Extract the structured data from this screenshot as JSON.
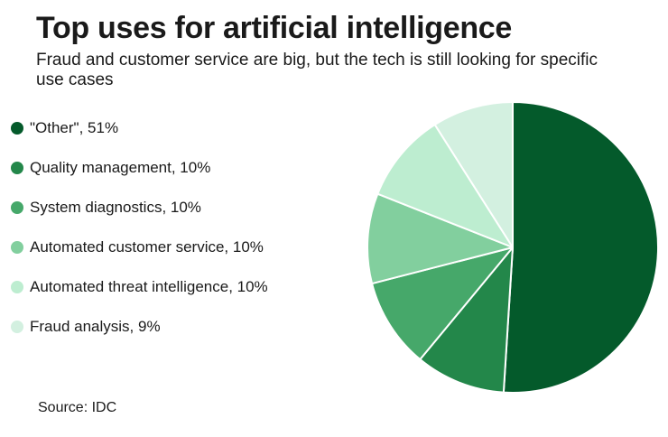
{
  "header": {
    "title": "Top uses for artificial intelligence",
    "subtitle": "Fraud and customer service are big, but the tech is still looking for specific use cases"
  },
  "legend": [
    {
      "label": "\"Other\", 51%",
      "color": "#045a2b"
    },
    {
      "label": "Quality management, 10%",
      "color": "#23874a"
    },
    {
      "label": "System diagnostics, 10%",
      "color": "#46a86a"
    },
    {
      "label": "Automated customer service, 10%",
      "color": "#82cf9e"
    },
    {
      "label": "Automated threat intelligence, 10%",
      "color": "#bdedd0"
    },
    {
      "label": "Fraud analysis, 9%",
      "color": "#d3f0e0"
    }
  ],
  "footer": {
    "source": "Source: IDC"
  },
  "chart_data": {
    "type": "pie",
    "title": "Top uses for artificial intelligence",
    "subtitle": "Fraud and customer service are big, but the tech is still looking for specific use cases",
    "categories": [
      "\"Other\"",
      "Quality management",
      "System diagnostics",
      "Automated customer service",
      "Automated threat intelligence",
      "Fraud analysis"
    ],
    "values": [
      51,
      10,
      10,
      10,
      10,
      9
    ],
    "unit": "%",
    "colors": [
      "#045a2b",
      "#23874a",
      "#46a86a",
      "#82cf9e",
      "#bdedd0",
      "#d3f0e0"
    ],
    "legend_position": "left",
    "start": "12 o'clock, clockwise",
    "source": "Source: IDC"
  }
}
